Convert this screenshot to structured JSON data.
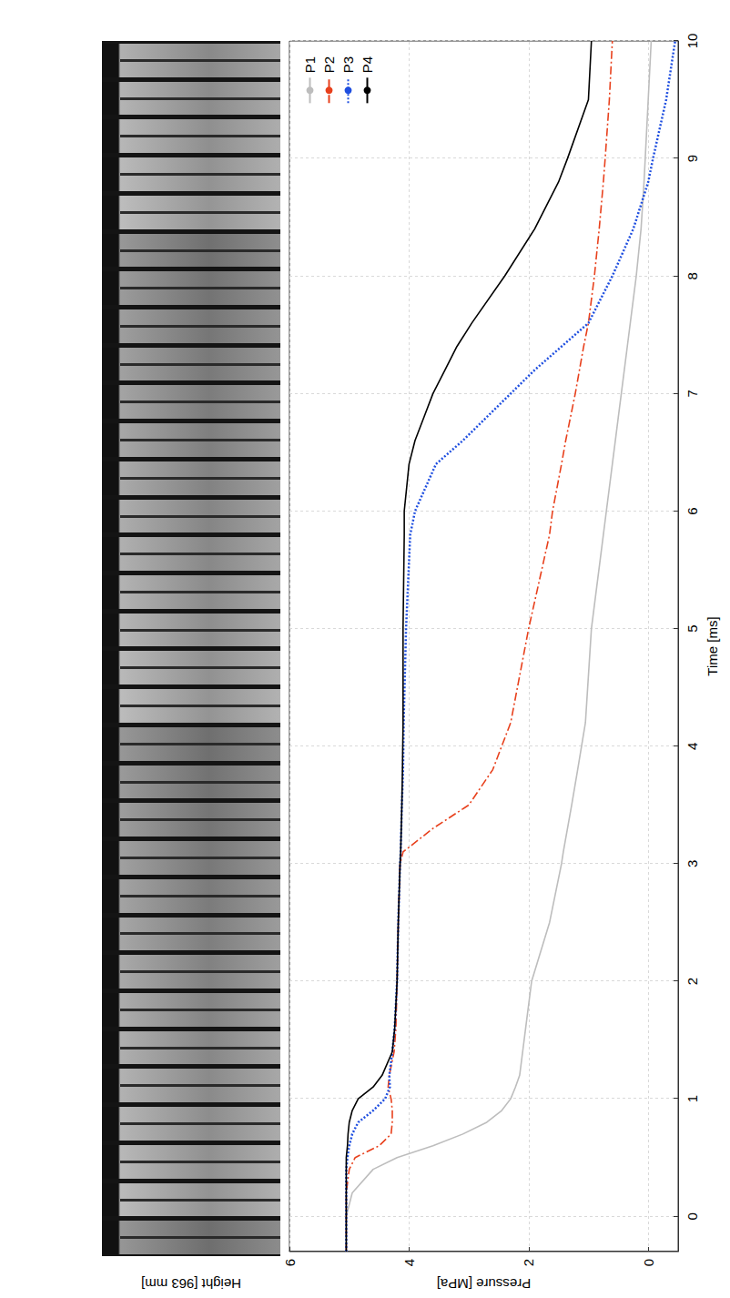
{
  "chart_data": {
    "type": "line",
    "xlabel": "Time [ms]",
    "ylabel": "Pressure [MPa]",
    "annotations": [
      "Height [963 mm]"
    ],
    "x": [
      -0.3,
      0,
      0.2,
      0.4,
      0.5,
      0.6,
      0.7,
      0.8,
      0.9,
      1.0,
      1.1,
      1.2,
      1.4,
      1.6,
      2.0,
      2.5,
      3.0,
      3.1,
      3.3,
      3.5,
      3.8,
      4.2,
      5.0,
      5.8,
      6.0,
      6.4,
      6.6,
      6.8,
      7.0,
      7.2,
      7.4,
      7.6,
      8.0,
      8.4,
      8.8,
      9.0,
      9.5,
      10
    ],
    "series": [
      {
        "name": "P1",
        "color": "#bdbdbd",
        "line_style": "solid",
        "values": [
          5.05,
          5.05,
          4.95,
          4.6,
          4.2,
          3.6,
          3.1,
          2.7,
          2.45,
          2.3,
          2.22,
          2.15,
          2.1,
          2.05,
          1.95,
          1.65,
          1.45,
          1.42,
          1.35,
          1.28,
          1.18,
          1.05,
          0.95,
          0.75,
          0.7,
          0.6,
          0.55,
          0.5,
          0.45,
          0.4,
          0.35,
          0.3,
          0.2,
          0.12,
          0.07,
          0.05,
          0.0,
          -0.05
        ]
      },
      {
        "name": "P2",
        "color": "#e8401c",
        "line_style": "dashdot",
        "values": [
          5.05,
          5.05,
          5.05,
          5.0,
          4.9,
          4.5,
          4.3,
          4.28,
          4.28,
          4.3,
          4.35,
          4.33,
          4.25,
          4.22,
          4.2,
          4.18,
          4.15,
          4.1,
          3.6,
          3.0,
          2.6,
          2.3,
          2.0,
          1.65,
          1.6,
          1.45,
          1.38,
          1.3,
          1.22,
          1.15,
          1.08,
          1.0,
          0.9,
          0.82,
          0.75,
          0.72,
          0.65,
          0.6
        ]
      },
      {
        "name": "P3",
        "color": "#1f4fe0",
        "line_style": "dotted",
        "values": [
          5.05,
          5.05,
          5.05,
          5.05,
          5.03,
          5.0,
          4.95,
          4.85,
          4.6,
          4.4,
          4.32,
          4.33,
          4.28,
          4.24,
          4.2,
          4.18,
          4.15,
          4.14,
          4.13,
          4.12,
          4.1,
          4.09,
          4.05,
          3.98,
          3.9,
          3.55,
          3.1,
          2.7,
          2.3,
          1.9,
          1.45,
          1.0,
          0.6,
          0.25,
          0.0,
          -0.08,
          -0.3,
          -0.45
        ]
      },
      {
        "name": "P4",
        "color": "#000000",
        "line_style": "solid",
        "values": [
          5.05,
          5.05,
          5.05,
          5.05,
          5.05,
          5.03,
          5.02,
          5.0,
          4.95,
          4.85,
          4.6,
          4.45,
          4.28,
          4.24,
          4.2,
          4.18,
          4.15,
          4.14,
          4.13,
          4.12,
          4.11,
          4.1,
          4.1,
          4.08,
          4.08,
          4.0,
          3.9,
          3.75,
          3.6,
          3.4,
          3.2,
          2.95,
          2.4,
          1.9,
          1.5,
          1.35,
          1.0,
          0.95
        ]
      }
    ],
    "xlim": [
      -0.3,
      10
    ],
    "xticks": [
      0,
      1,
      2,
      3,
      4,
      5,
      6,
      7,
      8,
      9,
      10
    ],
    "ylim": [
      -0.5,
      6
    ],
    "yticks": [
      0,
      2,
      4,
      6
    ],
    "grid": true,
    "legend": "upper right"
  }
}
